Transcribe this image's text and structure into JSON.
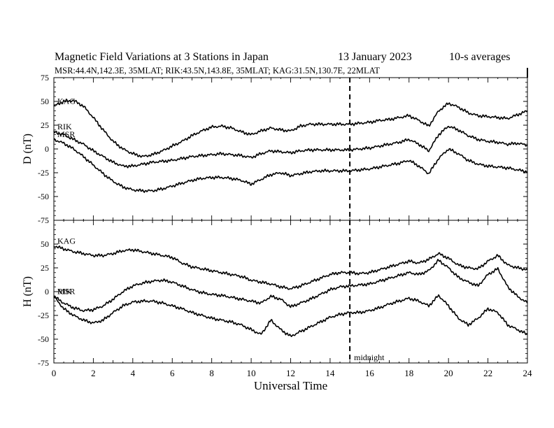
{
  "header": {
    "title": "Magnetic Field Variations at 3 Stations in Japan",
    "date": "13 January 2023",
    "averaging": "10-s averages",
    "stations": "MSR:44.4N,142.3E, 35MLAT;  RIK:43.5N,143.8E, 35MLAT;  KAG:31.5N,130.7E, 22MLAT"
  },
  "chart_data": [
    {
      "type": "line",
      "panel": "top",
      "ylabel": "D (nT)",
      "ylim": [
        -75,
        75
      ],
      "yticks": [
        "75",
        "50",
        "25",
        "0",
        "-25",
        "-50",
        "-75"
      ],
      "xlim": [
        0,
        24
      ],
      "x": [
        0,
        0.5,
        1,
        1.5,
        2,
        2.5,
        3,
        3.5,
        4,
        4.5,
        5,
        5.5,
        6,
        6.5,
        7,
        7.5,
        8,
        8.5,
        9,
        9.5,
        10,
        10.5,
        11,
        11.5,
        12,
        12.5,
        13,
        13.5,
        14,
        14.5,
        15,
        15.5,
        16,
        16.5,
        17,
        17.5,
        18,
        18.5,
        19,
        19.5,
        20,
        20.5,
        21,
        21.5,
        22,
        22.5,
        23,
        23.5,
        24
      ],
      "series": [
        {
          "name": "KAG",
          "values": [
            45,
            50,
            51,
            45,
            33,
            20,
            8,
            0,
            -5,
            -8,
            -6,
            -2,
            3,
            8,
            14,
            19,
            23,
            24,
            22,
            18,
            15,
            19,
            22,
            20,
            19,
            24,
            26,
            26,
            26,
            26,
            26,
            27,
            28,
            30,
            31,
            33,
            35,
            30,
            24,
            40,
            48,
            44,
            38,
            35,
            34,
            33,
            32,
            36,
            40
          ]
        },
        {
          "name": "RIK",
          "values": [
            18,
            15,
            10,
            5,
            -2,
            -8,
            -14,
            -18,
            -18,
            -16,
            -14,
            -13,
            -12,
            -10,
            -8,
            -7,
            -6,
            -5,
            -6,
            -7,
            -9,
            -5,
            -2,
            -3,
            -4,
            -2,
            -1,
            -1,
            -1,
            -1,
            -1,
            0,
            1,
            3,
            5,
            7,
            10,
            5,
            -2,
            15,
            24,
            20,
            14,
            10,
            8,
            7,
            5,
            6,
            4
          ]
        },
        {
          "name": "MSR",
          "values": [
            10,
            6,
            0,
            -8,
            -17,
            -26,
            -34,
            -40,
            -43,
            -44,
            -44,
            -42,
            -39,
            -36,
            -33,
            -31,
            -30,
            -30,
            -31,
            -33,
            -37,
            -32,
            -27,
            -25,
            -28,
            -26,
            -24,
            -23,
            -23,
            -23,
            -23,
            -22,
            -21,
            -19,
            -17,
            -15,
            -12,
            -18,
            -26,
            -10,
            0,
            -5,
            -12,
            -16,
            -18,
            -19,
            -20,
            -22,
            -24
          ]
        }
      ],
      "annotations": []
    },
    {
      "type": "line",
      "panel": "bottom",
      "ylabel": "H (nT)",
      "xlabel": "Universal Time",
      "ylim": [
        -75,
        75
      ],
      "yticks": [
        "",
        "50",
        "25",
        "0",
        "-25",
        "-50",
        "-75"
      ],
      "xlim": [
        0,
        24
      ],
      "xticks": [
        "0",
        "2",
        "4",
        "6",
        "8",
        "10",
        "12",
        "14",
        "16",
        "18",
        "20",
        "22",
        "24"
      ],
      "x": [
        0,
        0.5,
        1,
        1.5,
        2,
        2.5,
        3,
        3.5,
        4,
        4.5,
        5,
        5.5,
        6,
        6.5,
        7,
        7.5,
        8,
        8.5,
        9,
        9.5,
        10,
        10.5,
        11,
        11.5,
        12,
        12.5,
        13,
        13.5,
        14,
        14.5,
        15,
        15.5,
        16,
        16.5,
        17,
        17.5,
        18,
        18.5,
        19,
        19.5,
        20,
        20.5,
        21,
        21.5,
        22,
        22.5,
        23,
        23.5,
        24
      ],
      "series": [
        {
          "name": "KAG",
          "values": [
            48,
            45,
            42,
            40,
            38,
            38,
            40,
            43,
            44,
            42,
            40,
            38,
            36,
            30,
            26,
            24,
            22,
            20,
            18,
            16,
            12,
            10,
            8,
            5,
            3,
            6,
            10,
            14,
            18,
            20,
            20,
            19,
            20,
            23,
            26,
            29,
            32,
            30,
            34,
            40,
            35,
            28,
            25,
            24,
            32,
            38,
            28,
            25,
            23
          ]
        },
        {
          "name": "RIK",
          "values": [
            -5,
            -12,
            -17,
            -20,
            -19,
            -15,
            -8,
            0,
            6,
            9,
            11,
            12,
            10,
            6,
            2,
            -1,
            -3,
            -4,
            -6,
            -8,
            -10,
            -12,
            -5,
            -8,
            -16,
            -12,
            -8,
            -3,
            2,
            5,
            6,
            7,
            8,
            11,
            14,
            17,
            20,
            18,
            22,
            33,
            25,
            15,
            10,
            6,
            18,
            24,
            5,
            -5,
            -12
          ]
        },
        {
          "name": "MSR",
          "values": [
            -5,
            -18,
            -25,
            -30,
            -33,
            -30,
            -22,
            -15,
            -11,
            -10,
            -10,
            -12,
            -15,
            -18,
            -22,
            -25,
            -28,
            -30,
            -32,
            -35,
            -40,
            -45,
            -30,
            -40,
            -47,
            -42,
            -37,
            -32,
            -27,
            -24,
            -22,
            -22,
            -20,
            -17,
            -13,
            -10,
            -7,
            -10,
            -15,
            -4,
            -15,
            -28,
            -35,
            -28,
            -18,
            -22,
            -35,
            -40,
            -45
          ]
        }
      ],
      "annotations": [
        {
          "text": "midnight",
          "x": 15
        }
      ]
    }
  ]
}
